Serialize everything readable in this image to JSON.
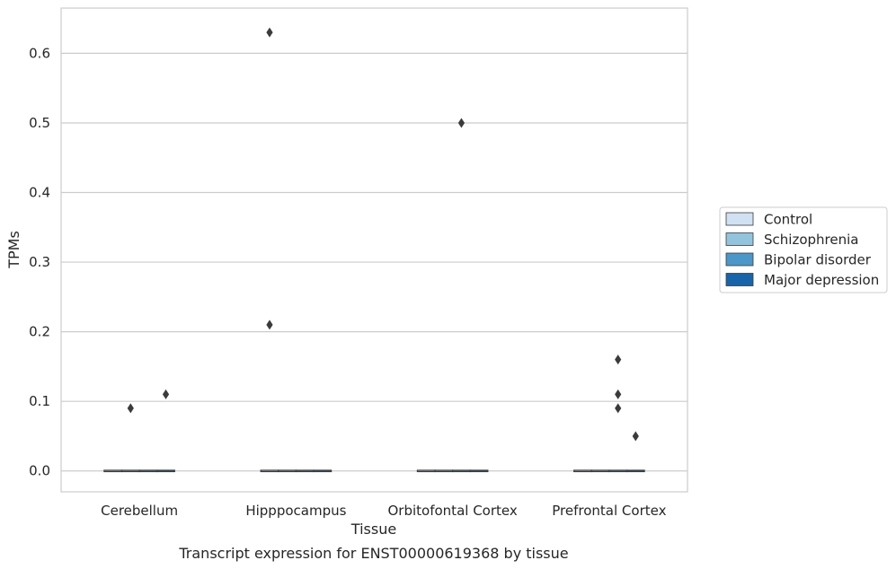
{
  "chart_data": {
    "type": "box",
    "xlabel": "Tissue",
    "ylabel": "TPMs",
    "caption": "Transcript expression for ENST00000619368 by tissue",
    "categories": [
      "Cerebellum",
      "Hipppocampus",
      "Orbitofontal Cortex",
      "Prefrontal Cortex"
    ],
    "ylim": [
      -0.03,
      0.665
    ],
    "yticks": [
      0.0,
      0.1,
      0.2,
      0.3,
      0.4,
      0.5,
      0.6
    ],
    "ytick_labels": [
      "0.0",
      "0.1",
      "0.2",
      "0.3",
      "0.4",
      "0.5",
      "0.6"
    ],
    "grid": "horizontal",
    "legend_position": "right",
    "series": [
      {
        "name": "Control",
        "color": "#cfe1f2"
      },
      {
        "name": "Schizophrenia",
        "color": "#93c4de"
      },
      {
        "name": "Bipolar disorder",
        "color": "#4b97c9"
      },
      {
        "name": "Major depression",
        "color": "#1764ab"
      }
    ],
    "medians": [
      [
        0.0,
        0.0,
        0.0,
        0.0
      ],
      [
        0.0,
        0.0,
        0.0,
        0.0
      ],
      [
        0.0,
        0.0,
        0.0,
        0.0
      ],
      [
        0.0,
        0.0,
        0.0,
        0.0
      ]
    ],
    "outliers": [
      {
        "category": "Cerebellum",
        "series": "Schizophrenia",
        "value": 0.09
      },
      {
        "category": "Cerebellum",
        "series": "Major depression",
        "value": 0.11
      },
      {
        "category": "Hipppocampus",
        "series": "Control",
        "value": 0.63
      },
      {
        "category": "Hipppocampus",
        "series": "Control",
        "value": 0.21
      },
      {
        "category": "Orbitofontal Cortex",
        "series": "Bipolar disorder",
        "value": 0.5
      },
      {
        "category": "Prefrontal Cortex",
        "series": "Bipolar disorder",
        "value": 0.16
      },
      {
        "category": "Prefrontal Cortex",
        "series": "Bipolar disorder",
        "value": 0.11
      },
      {
        "category": "Prefrontal Cortex",
        "series": "Bipolar disorder",
        "value": 0.09
      },
      {
        "category": "Prefrontal Cortex",
        "series": "Major depression",
        "value": 0.05
      }
    ],
    "colors": {
      "grid": "#cccccc",
      "frame": "#cccccc",
      "marks": "#3b3b3b"
    }
  }
}
